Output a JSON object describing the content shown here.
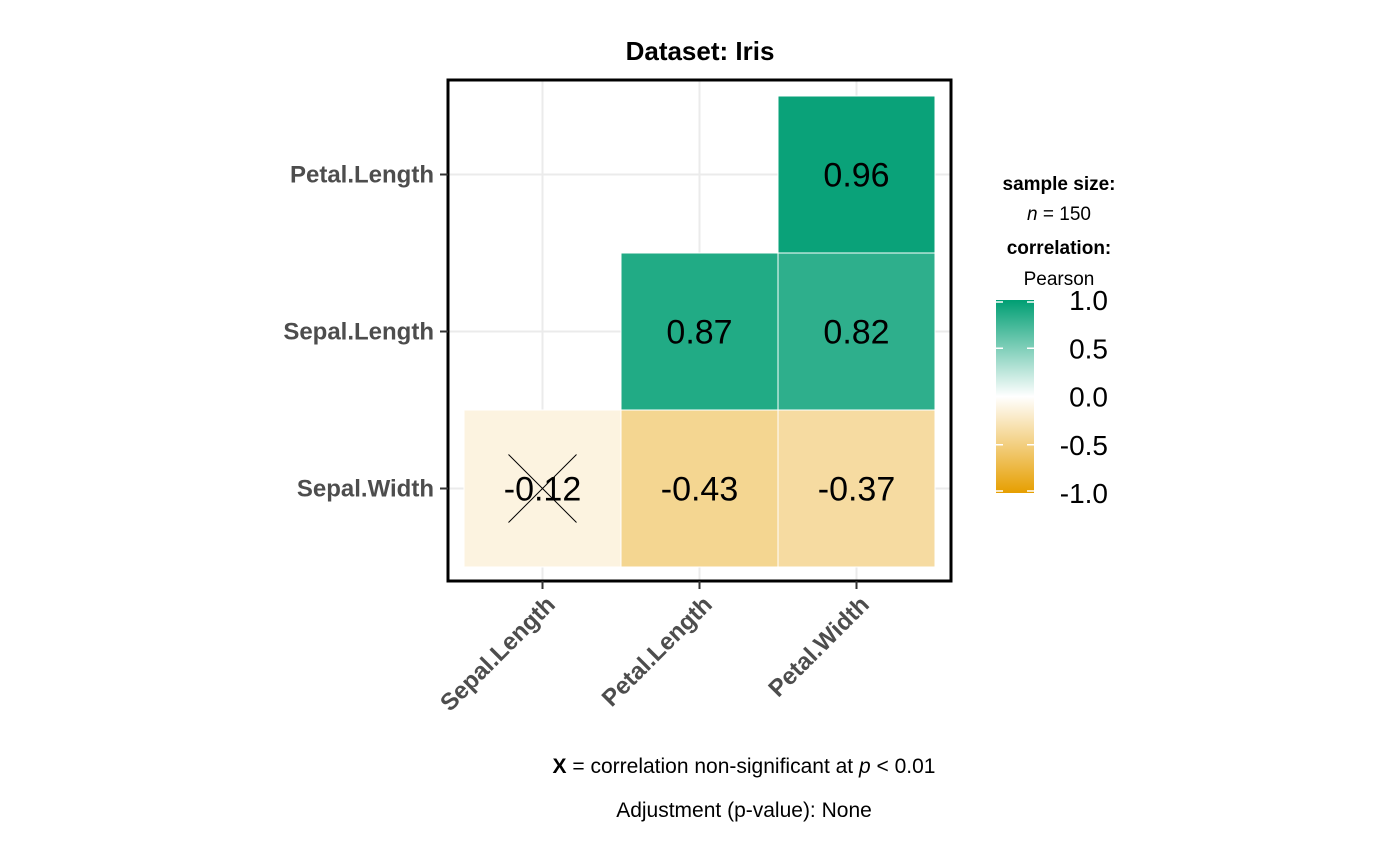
{
  "chart_data": {
    "type": "heatmap",
    "title": "Dataset: Iris",
    "x_categories": [
      "Sepal.Length",
      "Petal.Length",
      "Petal.Width"
    ],
    "y_categories": [
      "Sepal.Width",
      "Sepal.Length",
      "Petal.Length"
    ],
    "cells": [
      {
        "x": "Sepal.Length",
        "y": "Sepal.Width",
        "value": -0.12,
        "label": "-0.12",
        "non_significant": true
      },
      {
        "x": "Petal.Length",
        "y": "Sepal.Width",
        "value": -0.43,
        "label": "-0.43",
        "non_significant": false
      },
      {
        "x": "Petal.Width",
        "y": "Sepal.Width",
        "value": -0.37,
        "label": "-0.37",
        "non_significant": false
      },
      {
        "x": "Petal.Length",
        "y": "Sepal.Length",
        "value": 0.87,
        "label": "0.87",
        "non_significant": false
      },
      {
        "x": "Petal.Width",
        "y": "Sepal.Length",
        "value": 0.82,
        "label": "0.82",
        "non_significant": false
      },
      {
        "x": "Petal.Width",
        "y": "Petal.Length",
        "value": 0.96,
        "label": "0.96",
        "non_significant": false
      }
    ],
    "color_scale": {
      "low": "#E69F00",
      "mid": "#FFFFFF",
      "high": "#009E73",
      "range": [
        -1,
        1
      ]
    },
    "legend": {
      "placement": "right",
      "sample_size_title": "sample size:",
      "sample_size_n": "n",
      "sample_size_rest": " = 150",
      "correlation_title": "correlation:",
      "correlation_method": "Pearson",
      "ticks": [
        "1.0",
        "0.5",
        "0.0",
        "-0.5",
        "-1.0"
      ]
    },
    "caption_line1": {
      "bold": "X",
      "text": " = correlation non-significant at ",
      "italic": "p",
      "tail": " < 0.01"
    },
    "caption_line2": "Adjustment (p-value): None",
    "grid": true
  }
}
